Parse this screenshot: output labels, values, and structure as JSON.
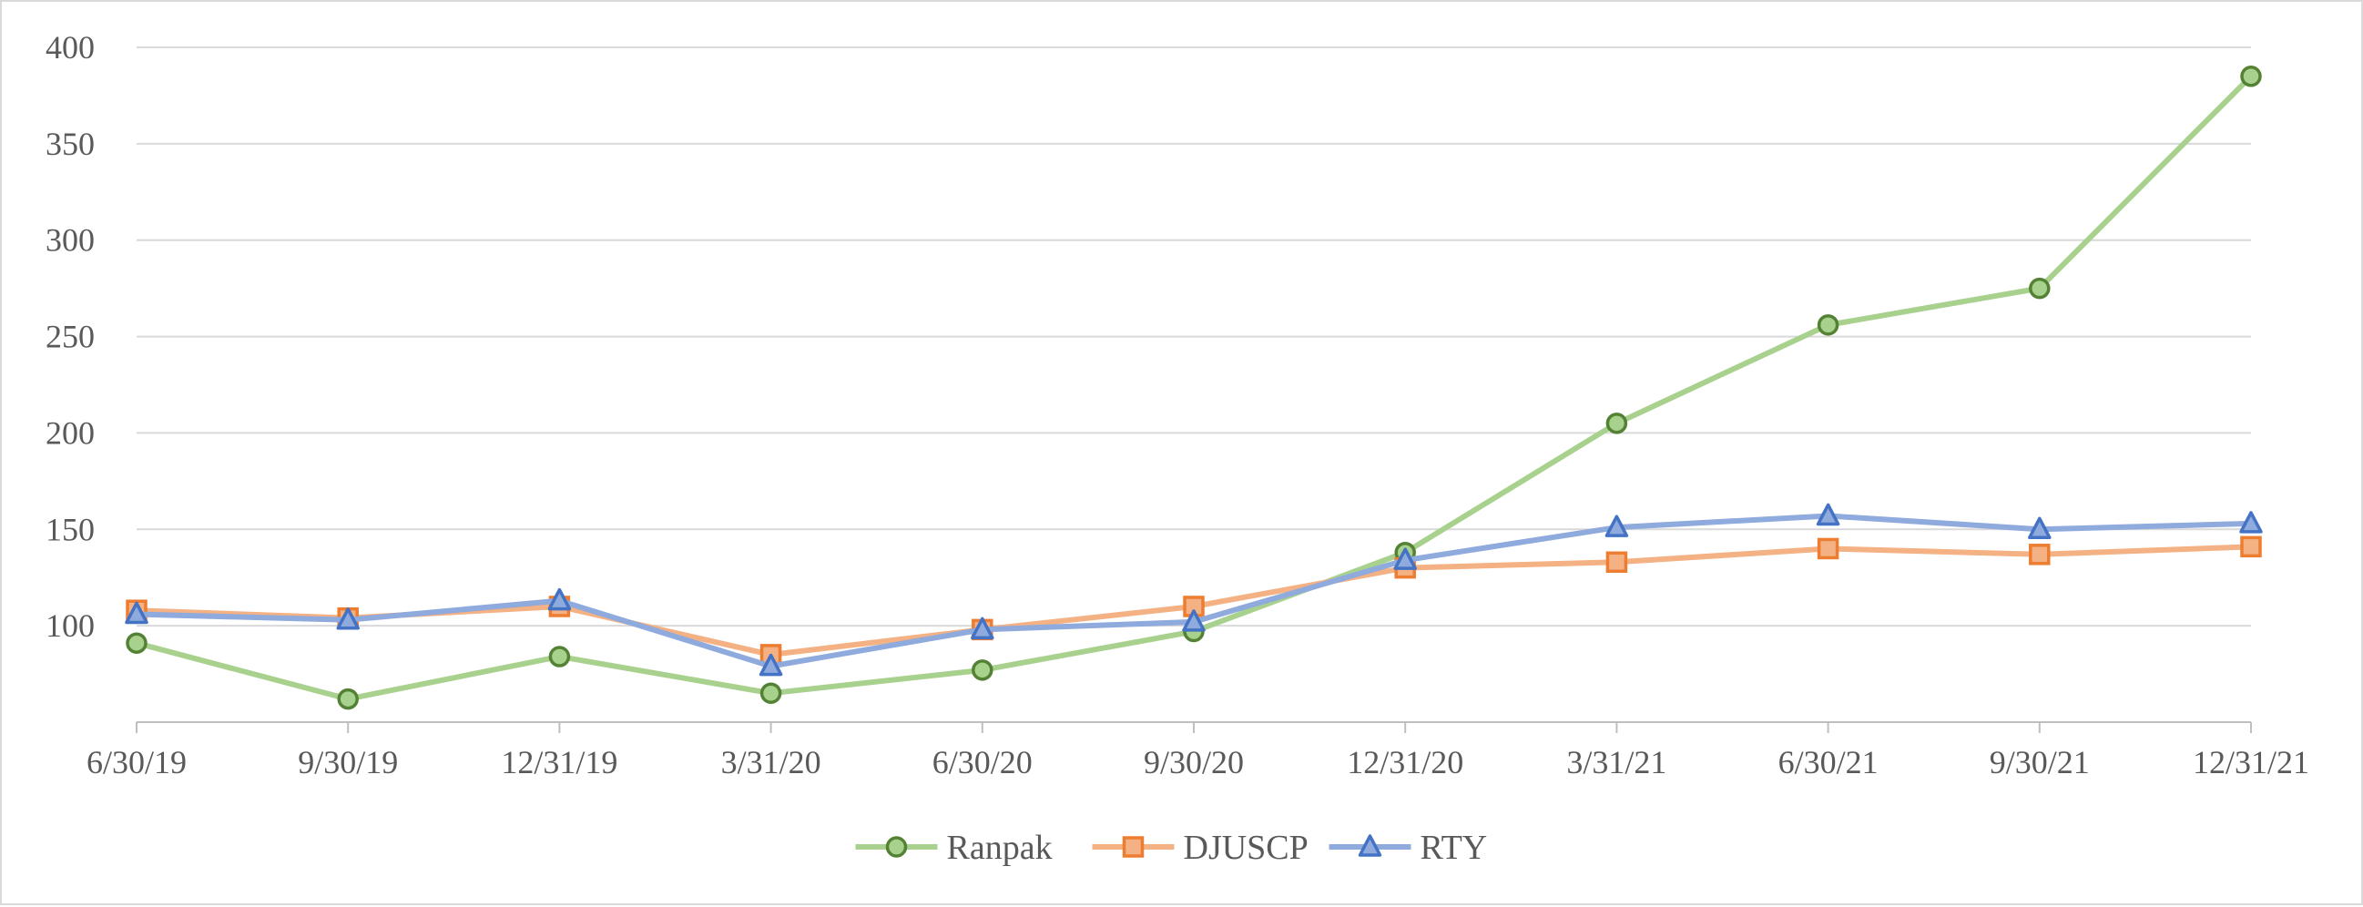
{
  "chart_data": {
    "type": "line",
    "categories": [
      "6/30/19",
      "9/30/19",
      "12/31/19",
      "3/31/20",
      "6/30/20",
      "9/30/20",
      "12/31/20",
      "3/31/21",
      "6/30/21",
      "9/30/21",
      "12/31/21"
    ],
    "ylim": [
      50,
      400
    ],
    "yticks": [
      100,
      150,
      200,
      250,
      300,
      350,
      400
    ],
    "grid": true,
    "legend_position": "bottom",
    "series": [
      {
        "name": "Ranpak",
        "marker": "circle",
        "line_color": "#a9d18e",
        "marker_fill": "#a9d18e",
        "marker_edge": "#548235",
        "values": [
          91,
          62,
          84,
          65,
          77,
          97,
          138,
          205,
          256,
          275,
          385
        ]
      },
      {
        "name": "DJUSCP",
        "marker": "square",
        "line_color": "#f4b183",
        "marker_fill": "#f4b183",
        "marker_edge": "#ed7d31",
        "values": [
          108,
          104,
          110,
          85,
          98,
          110,
          130,
          133,
          140,
          137,
          141
        ]
      },
      {
        "name": "RTY",
        "marker": "triangle",
        "line_color": "#8faadc",
        "marker_fill": "#8faadc",
        "marker_edge": "#4472c4",
        "values": [
          106,
          103,
          113,
          79,
          98,
          102,
          134,
          151,
          157,
          150,
          153
        ]
      }
    ]
  }
}
